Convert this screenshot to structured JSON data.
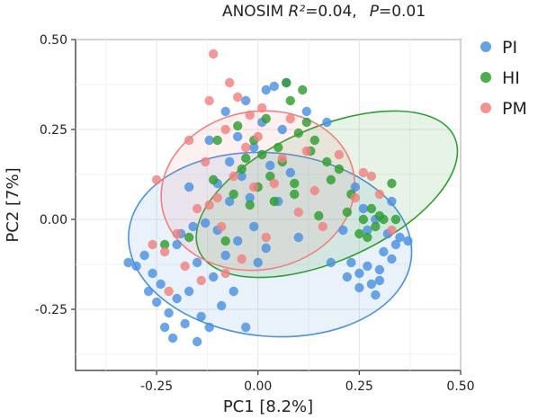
{
  "chart_data": {
    "type": "scatter",
    "title_prefix": "ANOSIM ",
    "title_r2_label": "R²",
    "title_r2_value": "=0.04,",
    "title_p_label": "P",
    "title_p_value": "=0.01",
    "xlabel": "PC1 [8.2%]",
    "ylabel": "PC2 [7%]",
    "xlim": [
      -0.45,
      0.5
    ],
    "ylim": [
      -0.42,
      0.5
    ],
    "xticks": [
      -0.25,
      0.0,
      0.25,
      0.5
    ],
    "xtick_labels": [
      "-0.25",
      "0.00",
      "0.25",
      "0.50"
    ],
    "yticks": [
      0.5,
      0.25,
      0.0,
      -0.25
    ],
    "ytick_labels": [
      "0.50",
      "0.25",
      "0.00",
      "-0.25"
    ],
    "grid": true,
    "legend_position": "right",
    "series": [
      {
        "name": "PI",
        "color": "#4a90e2",
        "ellipse": {
          "cx": 0.03,
          "cy": -0.07,
          "rx": 0.35,
          "ry": 0.255,
          "angle_deg": 5
        },
        "points": [
          [
            -0.32,
            -0.12
          ],
          [
            -0.3,
            -0.13
          ],
          [
            -0.28,
            -0.1
          ],
          [
            -0.27,
            -0.2
          ],
          [
            -0.26,
            -0.15
          ],
          [
            -0.25,
            -0.23
          ],
          [
            -0.24,
            -0.18
          ],
          [
            -0.23,
            -0.3
          ],
          [
            -0.22,
            -0.26
          ],
          [
            -0.21,
            -0.33
          ],
          [
            -0.2,
            -0.22
          ],
          [
            -0.2,
            -0.07
          ],
          [
            -0.19,
            -0.04
          ],
          [
            -0.18,
            -0.29
          ],
          [
            -0.17,
            -0.2
          ],
          [
            -0.17,
            0.09
          ],
          [
            -0.16,
            -0.02
          ],
          [
            -0.15,
            -0.34
          ],
          [
            -0.15,
            -0.12
          ],
          [
            -0.14,
            -0.27
          ],
          [
            -0.13,
            -0.01
          ],
          [
            -0.12,
            0.22
          ],
          [
            -0.12,
            -0.3
          ],
          [
            -0.11,
            -0.16
          ],
          [
            -0.1,
            0.1
          ],
          [
            -0.1,
            -0.03
          ],
          [
            -0.09,
            -0.24
          ],
          [
            -0.08,
            0.3
          ],
          [
            -0.08,
            -0.1
          ],
          [
            -0.07,
            0.16
          ],
          [
            -0.07,
            0.05
          ],
          [
            -0.06,
            -0.2
          ],
          [
            -0.05,
            0.23
          ],
          [
            -0.05,
            -0.06
          ],
          [
            -0.04,
            0.12
          ],
          [
            -0.03,
            0.33
          ],
          [
            -0.03,
            -0.3
          ],
          [
            -0.02,
            0.06
          ],
          [
            -0.01,
            -0.02
          ],
          [
            -0.01,
            0.2
          ],
          [
            0.0,
            -0.12
          ],
          [
            0.01,
            0.27
          ],
          [
            0.02,
            0.36
          ],
          [
            0.02,
            -0.08
          ],
          [
            0.03,
            0.15
          ],
          [
            0.04,
            0.37
          ],
          [
            0.05,
            0.05
          ],
          [
            0.06,
            0.25
          ],
          [
            0.07,
            0.38
          ],
          [
            0.08,
            0.13
          ],
          [
            0.1,
            -0.05
          ],
          [
            0.12,
            0.3
          ],
          [
            0.17,
            0.27
          ],
          [
            0.21,
            -0.03
          ],
          [
            0.23,
            -0.12
          ],
          [
            0.25,
            -0.15
          ],
          [
            0.27,
            -0.13
          ],
          [
            0.28,
            -0.18
          ],
          [
            0.29,
            -0.21
          ],
          [
            0.3,
            -0.14
          ],
          [
            0.31,
            -0.09
          ],
          [
            0.32,
            -0.04
          ],
          [
            0.33,
            -0.11
          ],
          [
            0.34,
            -0.07
          ],
          [
            0.35,
            -0.05
          ],
          [
            0.37,
            -0.06
          ],
          [
            0.24,
            0.09
          ],
          [
            0.26,
            0.03
          ],
          [
            0.27,
            -0.03
          ],
          [
            0.29,
            0.0
          ],
          [
            0.33,
            0.05
          ],
          [
            0.25,
            -0.19
          ],
          [
            0.22,
            -0.16
          ],
          [
            0.18,
            -0.12
          ],
          [
            0.3,
            -0.17
          ]
        ]
      },
      {
        "name": "HI",
        "color": "#2e9e2e",
        "ellipse": {
          "cx": 0.17,
          "cy": 0.07,
          "rx": 0.345,
          "ry": 0.185,
          "angle_deg": -24
        },
        "points": [
          [
            -0.23,
            -0.07
          ],
          [
            -0.17,
            -0.05
          ],
          [
            -0.11,
            0.11
          ],
          [
            -0.1,
            0.22
          ],
          [
            -0.08,
            -0.06
          ],
          [
            -0.06,
            0.07
          ],
          [
            -0.05,
            0.26
          ],
          [
            -0.04,
            0.14
          ],
          [
            -0.03,
            0.17
          ],
          [
            -0.02,
            0.04
          ],
          [
            -0.01,
            0.22
          ],
          [
            0.0,
            0.09
          ],
          [
            0.01,
            0.18
          ],
          [
            0.02,
            0.28
          ],
          [
            0.03,
            0.12
          ],
          [
            0.04,
            0.05
          ],
          [
            0.05,
            0.2
          ],
          [
            0.06,
            0.16
          ],
          [
            0.07,
            0.38
          ],
          [
            0.08,
            0.33
          ],
          [
            0.09,
            0.1
          ],
          [
            0.1,
            0.24
          ],
          [
            0.11,
            0.36
          ],
          [
            0.12,
            0.27
          ],
          [
            0.13,
            0.19
          ],
          [
            0.15,
            0.01
          ],
          [
            0.17,
            0.16
          ],
          [
            0.2,
            0.14
          ],
          [
            0.22,
            0.02
          ],
          [
            0.23,
            0.07
          ],
          [
            0.25,
            -0.04
          ],
          [
            0.26,
            0.0
          ],
          [
            0.27,
            -0.05
          ],
          [
            0.28,
            0.03
          ],
          [
            0.29,
            -0.02
          ],
          [
            0.3,
            0.01
          ],
          [
            0.31,
            0.0
          ],
          [
            0.33,
            0.1
          ],
          [
            0.34,
            0.0
          ],
          [
            0.09,
            0.07
          ],
          [
            0.14,
            0.22
          ],
          [
            0.18,
            0.11
          ]
        ]
      },
      {
        "name": "PM",
        "color": "#f08080",
        "ellipse": {
          "cx": 0.0,
          "cy": 0.08,
          "rx": 0.24,
          "ry": 0.22,
          "angle_deg": -10
        },
        "points": [
          [
            -0.26,
            -0.07
          ],
          [
            -0.25,
            0.11
          ],
          [
            -0.23,
            -0.09
          ],
          [
            -0.22,
            -0.2
          ],
          [
            -0.2,
            -0.04
          ],
          [
            -0.18,
            -0.13
          ],
          [
            -0.17,
            0.22
          ],
          [
            -0.15,
            0.03
          ],
          [
            -0.14,
            -0.17
          ],
          [
            -0.13,
            0.16
          ],
          [
            -0.12,
            0.33
          ],
          [
            -0.11,
            0.46
          ],
          [
            -0.1,
            0.06
          ],
          [
            -0.09,
            -0.02
          ],
          [
            -0.08,
            0.25
          ],
          [
            -0.07,
            0.38
          ],
          [
            -0.06,
            0.12
          ],
          [
            -0.05,
            0.34
          ],
          [
            -0.04,
            -0.11
          ],
          [
            -0.03,
            0.2
          ],
          [
            -0.02,
            0.29
          ],
          [
            -0.01,
            0.09
          ],
          [
            0.0,
            0.23
          ],
          [
            0.01,
            0.31
          ],
          [
            0.02,
            -0.05
          ],
          [
            0.04,
            0.1
          ],
          [
            0.06,
            0.17
          ],
          [
            0.08,
            0.28
          ],
          [
            0.1,
            0.02
          ],
          [
            0.12,
            0.19
          ],
          [
            0.14,
            0.08
          ],
          [
            0.16,
            -0.02
          ],
          [
            0.2,
            0.18
          ],
          [
            0.24,
            0.06
          ],
          [
            0.26,
            0.13
          ],
          [
            0.28,
            0.12
          ],
          [
            0.3,
            0.07
          ],
          [
            0.33,
            -0.03
          ],
          [
            -0.12,
            0.04
          ],
          [
            -0.08,
            -0.15
          ]
        ]
      }
    ]
  }
}
